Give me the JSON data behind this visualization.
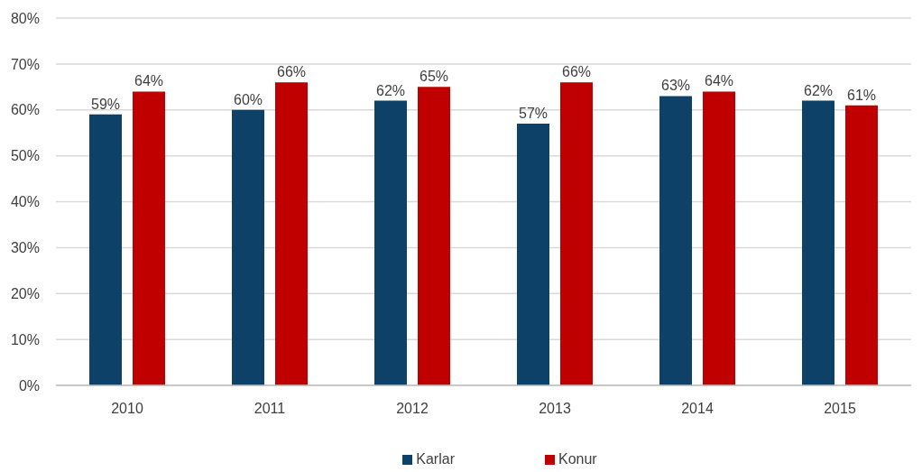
{
  "chart_data": {
    "type": "bar",
    "categories": [
      "2010",
      "2011",
      "2012",
      "2013",
      "2014",
      "2015"
    ],
    "series": [
      {
        "name": "Karlar",
        "color": "#0d4168",
        "values": [
          59,
          60,
          62,
          57,
          63,
          62
        ],
        "value_labels": [
          "59%",
          "60%",
          "62%",
          "57%",
          "63%",
          "62%"
        ]
      },
      {
        "name": "Konur",
        "color": "#c00000",
        "values": [
          64,
          66,
          65,
          66,
          64,
          61
        ],
        "value_labels": [
          "64%",
          "66%",
          "65%",
          "66%",
          "64%",
          "61%"
        ]
      }
    ],
    "ylim": [
      0,
      80
    ],
    "yticks": [
      {
        "value": 0,
        "label": "0%"
      },
      {
        "value": 10,
        "label": "10%"
      },
      {
        "value": 20,
        "label": "20%"
      },
      {
        "value": 30,
        "label": "30%"
      },
      {
        "value": 40,
        "label": "40%"
      },
      {
        "value": 50,
        "label": "50%"
      },
      {
        "value": 60,
        "label": "60%"
      },
      {
        "value": 70,
        "label": "70%"
      },
      {
        "value": 80,
        "label": "80%"
      }
    ],
    "grid": "y",
    "legend": "bottom"
  }
}
